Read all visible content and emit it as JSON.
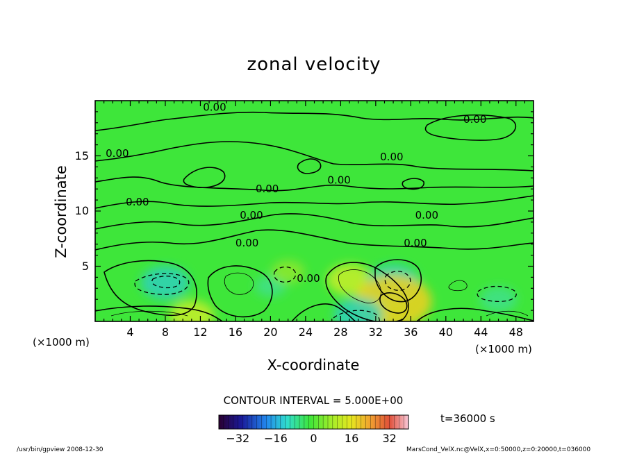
{
  "chart_data": {
    "type": "heatmap",
    "title": "zonal velocity",
    "xlabel": "X-coordinate",
    "ylabel": "Z-coordinate",
    "x_unit": "(×1000 m)",
    "xlim": [
      0,
      50
    ],
    "ylim": [
      0,
      20
    ],
    "x_ticks": [
      "4",
      "8",
      "12",
      "16",
      "20",
      "24",
      "28",
      "32",
      "36",
      "40",
      "44",
      "48"
    ],
    "y_ticks": [
      "5",
      "10",
      "15"
    ],
    "contour_labels": [
      "0.00",
      "0.00",
      "0.00",
      "0.00",
      "0.00",
      "0.00",
      "0.00",
      "0.00",
      "0.00",
      "0.00",
      "0.00",
      "0.00"
    ],
    "contour_interval_text": "CONTOUR INTERVAL = 5.000E+00",
    "colorbar_ticks": [
      "−32",
      "−16",
      "0",
      "16",
      "32"
    ],
    "colorbar_range": [
      -40,
      40
    ],
    "time_text": "t=36000 s",
    "cells": [
      {
        "x": 8,
        "z": 3.5,
        "value": -12
      },
      {
        "x": 20,
        "z": 3.2,
        "value": -3
      },
      {
        "x": 22,
        "z": 4.5,
        "value": 4
      },
      {
        "x": 29,
        "z": 3.8,
        "value": 10
      },
      {
        "x": 34,
        "z": 3.5,
        "value": -14
      },
      {
        "x": 34,
        "z": 1.8,
        "value": 26
      },
      {
        "x": 30,
        "z": 0.6,
        "value": -12
      },
      {
        "x": 11,
        "z": 0.5,
        "value": 10
      },
      {
        "x": 46,
        "z": 2.0,
        "value": -6
      }
    ]
  },
  "footer": {
    "left": "/usr/bin/gpview   2008-12-30",
    "right": "MarsCond_VelX.nc@VelX,x=0:50000,z=0:20000,t=036000"
  },
  "colors": {
    "background_field": "#3ee63a",
    "positive": "#c8ee2a",
    "negative": "#3ed6a8"
  }
}
